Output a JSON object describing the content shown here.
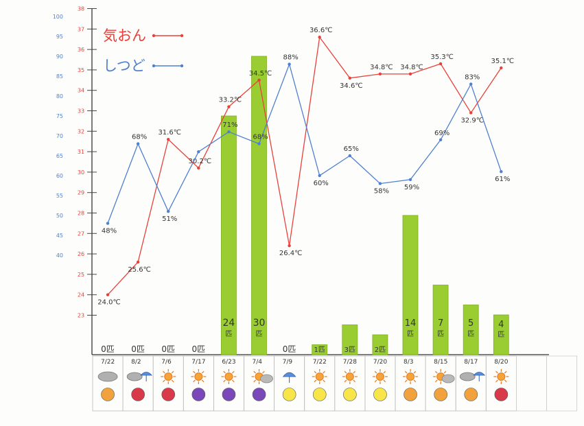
{
  "chart_data": {
    "type": "bar+line",
    "title": "",
    "legend": [
      {
        "label": "気おん",
        "color": "#e8403a"
      },
      {
        "label": "しつど",
        "color": "#4f7fd0"
      }
    ],
    "legend_placement": "top-left",
    "axes": {
      "humidity": {
        "color": "#4f7fd0",
        "ticks": [
          100,
          95,
          90,
          85,
          80,
          75,
          70,
          65,
          60,
          55,
          50,
          45,
          40
        ],
        "ylim": [
          40,
          100
        ]
      },
      "temperature": {
        "color": "#e8403a",
        "ticks": [
          38,
          37,
          36,
          35,
          34,
          33,
          32,
          31,
          30,
          29,
          28,
          27,
          26,
          25,
          24,
          23
        ],
        "ylim": [
          23,
          38
        ]
      },
      "count_ylim": [
        0,
        33
      ]
    },
    "categories": [
      "7/22",
      "8/2",
      "7/6",
      "7/17",
      "6/23",
      "7/4",
      "7/9",
      "7/22",
      "7/28",
      "7/20",
      "8/3",
      "8/15",
      "8/17",
      "8/20"
    ],
    "series": [
      {
        "name": "気おん",
        "type": "line",
        "color": "#e8403a",
        "values": [
          24.0,
          25.6,
          31.6,
          30.2,
          33.2,
          34.5,
          26.4,
          36.6,
          34.6,
          34.8,
          34.8,
          35.3,
          32.9,
          35.1
        ],
        "labels": [
          "24.0℃",
          "25.6℃",
          "31.6℃",
          "30.2℃",
          "33.2℃",
          "34.5℃",
          "26.4℃",
          "36.6℃",
          "34.6℃",
          "34.8℃",
          "34.8℃",
          "35.3℃",
          "32.9℃",
          "35.1℃"
        ]
      },
      {
        "name": "しつど",
        "type": "line",
        "color": "#4f7fd0",
        "values": [
          48,
          68,
          51,
          66,
          71,
          68,
          88,
          60,
          65,
          58,
          59,
          69,
          83,
          61
        ],
        "labels": [
          "48%",
          "68%",
          "51%",
          "",
          "71%",
          "68%",
          "88%",
          "60%",
          "65%",
          "58%",
          "59%",
          "69%",
          "83%",
          "61%"
        ]
      },
      {
        "type": "bar",
        "color": "#9acd32",
        "values": [
          0,
          0,
          0,
          0,
          24,
          30,
          0,
          1,
          3,
          2,
          14,
          7,
          5,
          4
        ],
        "labels": [
          "0匹",
          "0匹",
          "0匹",
          "0匹",
          "24匹",
          "30匹",
          "0匹",
          "1匹",
          "3匹",
          "2匹",
          "14匹",
          "7匹",
          "5匹",
          "4匹"
        ]
      }
    ],
    "weather_icons": [
      "cloudy-icon",
      "cloudy-rain-icon",
      "sunny-icon",
      "sunny-icon",
      "sunny-icon",
      "sunny-cloudy-icon",
      "rain-umbrella-icon",
      "sunny-icon",
      "sunny-icon",
      "sunny-icon",
      "sunny-icon",
      "sunny-cloudy-icon",
      "cloudy-rain-icon",
      "sunny-icon"
    ],
    "dot_colors": [
      "#f2a23c",
      "#d83a4a",
      "#d83a4a",
      "#7a48b8",
      "#7a48b8",
      "#7a48b8",
      "#f7e54a",
      "#f7e54a",
      "#f7e54a",
      "#f7e54a",
      "#f2a23c",
      "#f2a23c",
      "#f2a23c",
      "#d83a4a"
    ],
    "grid": false
  }
}
